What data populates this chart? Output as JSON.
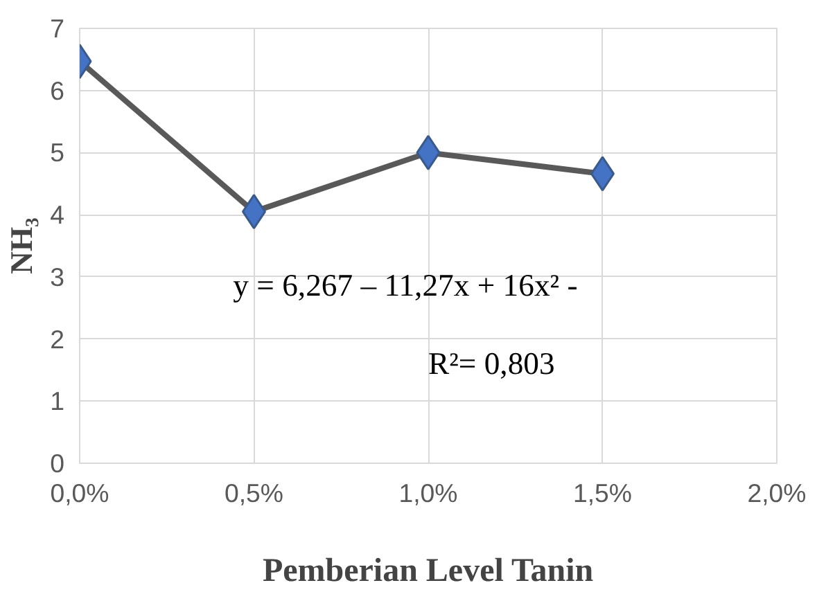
{
  "chart_data": {
    "type": "line",
    "xlabel": "Pemberian Level Tanin",
    "ylabel": "NH₃",
    "x": [
      0,
      0.5,
      1.0,
      1.5
    ],
    "series": [
      {
        "color": "#4472c4",
        "values": [
          6.47,
          4.05,
          5.0,
          4.66
        ]
      }
    ],
    "xlim": [
      0,
      2
    ],
    "xticks": [
      {
        "value": 0,
        "label": "0,0%"
      },
      {
        "value": 0.5,
        "label": "0,5%"
      },
      {
        "value": 1.0,
        "label": "1,0%"
      },
      {
        "value": 1.5,
        "label": "1,5%"
      },
      {
        "value": 2,
        "label": "2,0%"
      }
    ],
    "ylim": [
      0,
      7
    ],
    "yticks": [
      0,
      1,
      2,
      3,
      4,
      5,
      6,
      7
    ],
    "annotations": [
      "y = 6,267 – 11,27x + 16x² -",
      "R²= 0,803"
    ],
    "grid": true,
    "marker": "diamond",
    "line_style": "solid"
  }
}
